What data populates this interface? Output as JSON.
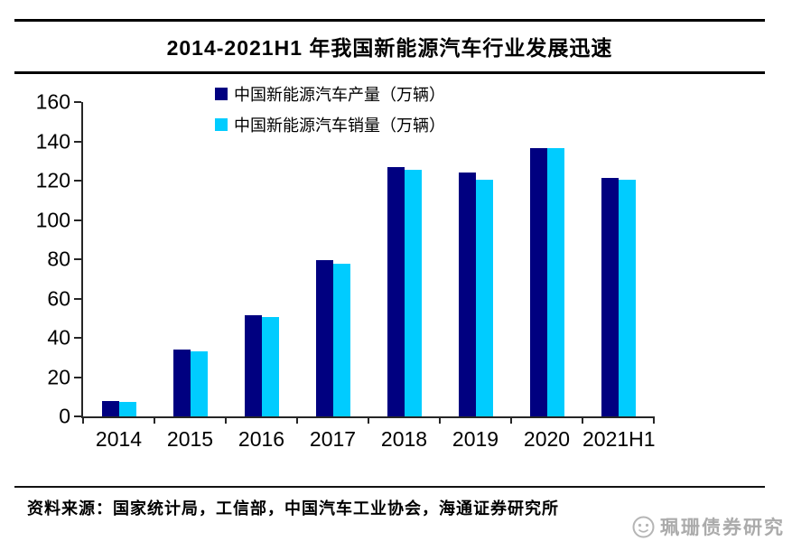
{
  "header": {
    "title": "2014-2021H1 年我国新能源汽车行业发展迅速"
  },
  "legend": {
    "items": [
      {
        "label": "中国新能源汽车产量（万辆）",
        "color": "#000080"
      },
      {
        "label": "中国新能源汽车销量（万辆）",
        "color": "#00CCFF"
      }
    ]
  },
  "chart_data": {
    "type": "bar",
    "title": "2014-2021H1 年我国新能源汽车行业发展迅速",
    "categories": [
      "2014",
      "2015",
      "2016",
      "2017",
      "2018",
      "2019",
      "2020",
      "2021H1"
    ],
    "series": [
      {
        "name": "中国新能源汽车产量（万辆）",
        "color": "#000080",
        "values": [
          7.9,
          34.0,
          51.7,
          79.4,
          127.0,
          124.2,
          136.6,
          121.5
        ]
      },
      {
        "name": "中国新能源汽车销量（万辆）",
        "color": "#00CCFF",
        "values": [
          7.5,
          33.1,
          50.7,
          77.7,
          125.6,
          120.6,
          136.7,
          120.6
        ]
      }
    ],
    "xlabel": "",
    "ylabel": "",
    "ylim": [
      0,
      160
    ],
    "ytick_step": 20,
    "grid": false,
    "legend_position": "top-center",
    "colors": {
      "axis": "#262626",
      "production": "#000080",
      "sales": "#00CCFF"
    }
  },
  "footer": {
    "source": "资料来源：国家统计局，工信部，中国汽车工业协会，海通证券研究所",
    "watermark_text": "珮珊债券研究"
  }
}
